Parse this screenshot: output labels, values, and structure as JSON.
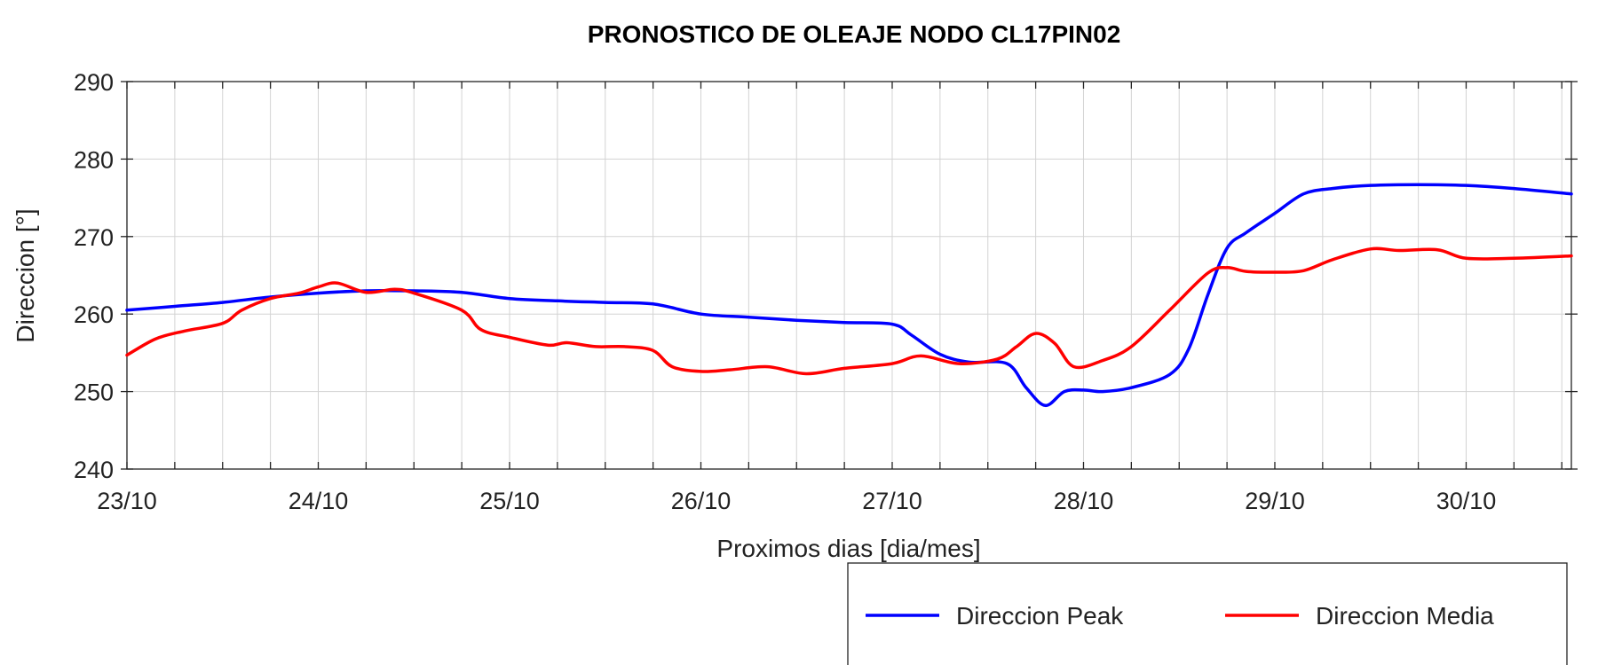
{
  "chart_data": {
    "type": "line",
    "title": "PRONOSTICO DE OLEAJE NODO CL17PIN02",
    "xlabel": "Proximos dias [dia/mes]",
    "ylabel": "Direccion [°]",
    "ylim": [
      240,
      290
    ],
    "yticks": [
      240,
      250,
      260,
      270,
      280,
      290
    ],
    "xlim": [
      0,
      7.55
    ],
    "xticks": [
      0,
      1,
      2,
      3,
      4,
      5,
      6,
      7
    ],
    "xtick_labels": [
      "23/10",
      "24/10",
      "25/10",
      "26/10",
      "27/10",
      "28/10",
      "29/10",
      "30/10"
    ],
    "minor_step": 0.25,
    "grid": true,
    "legend": "bottom-right",
    "series": [
      {
        "name": "Direccion Peak",
        "color": "#0000ff",
        "x": [
          0,
          0.25,
          0.5,
          0.75,
          1.0,
          1.25,
          1.5,
          1.75,
          2.0,
          2.25,
          2.5,
          2.75,
          3.0,
          3.25,
          3.5,
          3.75,
          4.0,
          4.1,
          4.25,
          4.4,
          4.6,
          4.7,
          4.8,
          4.9,
          5.0,
          5.1,
          5.25,
          5.45,
          5.55,
          5.65,
          5.75,
          5.85,
          6.0,
          6.15,
          6.3,
          6.5,
          6.75,
          7.0,
          7.25,
          7.55
        ],
        "values": [
          260.5,
          261.0,
          261.5,
          262.2,
          262.7,
          263.0,
          263.0,
          262.8,
          262.0,
          261.7,
          261.5,
          261.3,
          260.0,
          259.6,
          259.2,
          258.9,
          258.7,
          257.3,
          254.8,
          253.8,
          253.6,
          250.5,
          248.2,
          250.0,
          250.2,
          250.0,
          250.5,
          252.2,
          255.5,
          262.5,
          268.5,
          270.5,
          273.0,
          275.5,
          276.2,
          276.6,
          276.7,
          276.6,
          276.2,
          275.5
        ]
      },
      {
        "name": "Direccion Media",
        "color": "#ff0000",
        "x": [
          0,
          0.15,
          0.3,
          0.5,
          0.6,
          0.75,
          0.9,
          1.0,
          1.1,
          1.25,
          1.4,
          1.5,
          1.75,
          1.85,
          2.0,
          2.2,
          2.3,
          2.45,
          2.6,
          2.75,
          2.85,
          3.0,
          3.15,
          3.35,
          3.55,
          3.75,
          4.0,
          4.15,
          4.35,
          4.55,
          4.65,
          4.75,
          4.85,
          4.95,
          5.1,
          5.25,
          5.45,
          5.65,
          5.75,
          5.85,
          6.0,
          6.15,
          6.3,
          6.5,
          6.65,
          6.85,
          7.0,
          7.25,
          7.55
        ],
        "values": [
          254.7,
          256.8,
          257.8,
          258.8,
          260.5,
          262.0,
          262.7,
          263.5,
          264.0,
          262.8,
          263.2,
          262.7,
          260.5,
          258.0,
          257.0,
          256.0,
          256.3,
          255.8,
          255.8,
          255.3,
          253.2,
          252.6,
          252.8,
          253.2,
          252.3,
          253.0,
          253.6,
          254.6,
          253.6,
          254.2,
          255.8,
          257.5,
          256.2,
          253.2,
          254.0,
          255.8,
          260.5,
          265.3,
          266.0,
          265.5,
          265.4,
          265.6,
          267.0,
          268.4,
          268.2,
          268.3,
          267.2,
          267.2,
          267.5
        ]
      }
    ]
  }
}
